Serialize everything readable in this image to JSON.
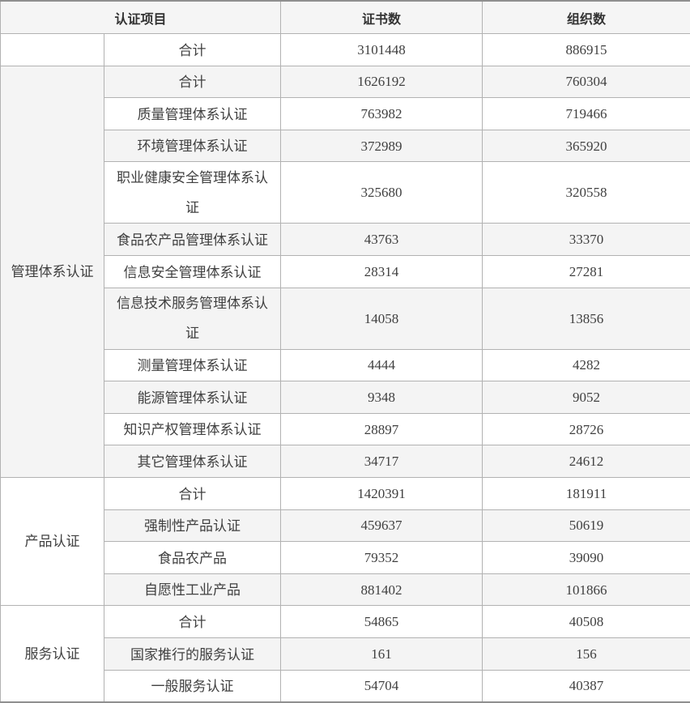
{
  "chart_data": {
    "type": "table",
    "columns": [
      "认证项目",
      "证书数",
      "组织数"
    ],
    "groups": [
      {
        "name": "",
        "rows": [
          {
            "label": "合计",
            "certificates": 3101448,
            "organizations": 886915
          }
        ]
      },
      {
        "name": "管理体系认证",
        "rows": [
          {
            "label": "合计",
            "certificates": 1626192,
            "organizations": 760304
          },
          {
            "label": "质量管理体系认证",
            "certificates": 763982,
            "organizations": 719466
          },
          {
            "label": "环境管理体系认证",
            "certificates": 372989,
            "organizations": 365920
          },
          {
            "label": "职业健康安全管理体系认证",
            "certificates": 325680,
            "organizations": 320558
          },
          {
            "label": "食品农产品管理体系认证",
            "certificates": 43763,
            "organizations": 33370
          },
          {
            "label": "信息安全管理体系认证",
            "certificates": 28314,
            "organizations": 27281
          },
          {
            "label": "信息技术服务管理体系认证",
            "certificates": 14058,
            "organizations": 13856
          },
          {
            "label": "测量管理体系认证",
            "certificates": 4444,
            "organizations": 4282
          },
          {
            "label": "能源管理体系认证",
            "certificates": 9348,
            "organizations": 9052
          },
          {
            "label": "知识产权管理体系认证",
            "certificates": 28897,
            "organizations": 28726
          },
          {
            "label": "其它管理体系认证",
            "certificates": 34717,
            "organizations": 24612
          }
        ]
      },
      {
        "name": "产品认证",
        "rows": [
          {
            "label": "合计",
            "certificates": 1420391,
            "organizations": 181911
          },
          {
            "label": "强制性产品认证",
            "certificates": 459637,
            "organizations": 50619
          },
          {
            "label": "食品农产品",
            "certificates": 79352,
            "organizations": 39090
          },
          {
            "label": "自愿性工业产品",
            "certificates": 881402,
            "organizations": 101866
          }
        ]
      },
      {
        "name": "服务认证",
        "rows": [
          {
            "label": "合计",
            "certificates": 54865,
            "organizations": 40508
          },
          {
            "label": "国家推行的服务认证",
            "certificates": 161,
            "organizations": 156
          },
          {
            "label": "一般服务认证",
            "certificates": 54704,
            "organizations": 40387
          }
        ]
      }
    ]
  },
  "colors": {
    "header_bg": "#f5f5f5",
    "stripe_bg": "#f4f4f4",
    "border": "#b2b2b2",
    "outer_border": "#8f8f8f",
    "header_text": "#333333",
    "body_text": "#404040"
  }
}
